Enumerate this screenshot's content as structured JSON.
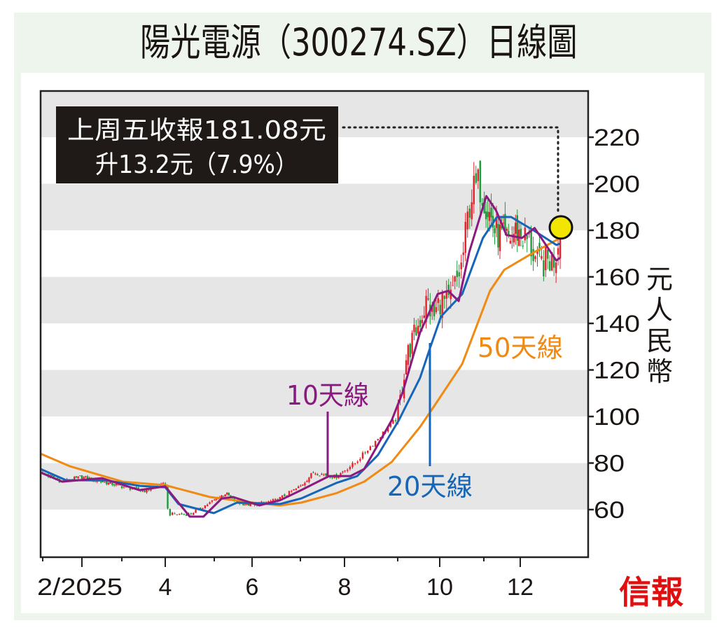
{
  "title": "陽光電源（300274.SZ）日線圖",
  "callout": {
    "line1": "上周五收報181.08元",
    "line2": "升13.2元（7.9%）",
    "last_close": 181.08
  },
  "labels": {
    "ma10": "10天線",
    "ma20": "20天線",
    "ma50": "50天線",
    "ylabel": "元人民幣"
  },
  "logo": "信報",
  "colors": {
    "ma10": "#8b1a80",
    "ma20": "#1565b8",
    "ma50": "#f08a12",
    "up": "#e8202a",
    "down": "#1e9a3a",
    "band": "#e6e6e6",
    "highlight": "#f2e600",
    "logo": "#e01010",
    "background": "#eef5ec"
  },
  "chart_data": {
    "type": "candlestick-with-moving-averages",
    "title": "陽光電源（300274.SZ）日線圖",
    "xlabel": "",
    "ylabel": "元人民幣",
    "ylim": [
      40,
      240
    ],
    "yticks": [
      60,
      80,
      100,
      120,
      140,
      160,
      180,
      200,
      220
    ],
    "xticks": [
      {
        "month": 2,
        "label": "2/2025"
      },
      {
        "month": 4,
        "label": "4"
      },
      {
        "month": 6,
        "label": "6"
      },
      {
        "month": 8,
        "label": "8"
      },
      {
        "month": 10,
        "label": "10"
      },
      {
        "month": 12,
        "label": "12"
      }
    ],
    "x_units": "month of 2025 (1.0 = start of January)",
    "close_anchors": [
      [
        0.95,
        76
      ],
      [
        1.5,
        72
      ],
      [
        2.0,
        74
      ],
      [
        2.5,
        72
      ],
      [
        3.0,
        70
      ],
      [
        3.5,
        68
      ],
      [
        4.0,
        71
      ],
      [
        4.06,
        58
      ],
      [
        4.5,
        58
      ],
      [
        5.0,
        64
      ],
      [
        5.3,
        67
      ],
      [
        5.6,
        63
      ],
      [
        6.0,
        62
      ],
      [
        6.5,
        64
      ],
      [
        7.0,
        70
      ],
      [
        7.3,
        76
      ],
      [
        7.8,
        74
      ],
      [
        8.2,
        80
      ],
      [
        8.6,
        90
      ],
      [
        8.9,
        97
      ],
      [
        9.0,
        100
      ],
      [
        9.2,
        125
      ],
      [
        9.5,
        140
      ],
      [
        9.7,
        150
      ],
      [
        9.85,
        142
      ],
      [
        10.0,
        150
      ],
      [
        10.2,
        148
      ],
      [
        10.5,
        165
      ],
      [
        10.7,
        195
      ],
      [
        10.9,
        200
      ],
      [
        11.1,
        190
      ],
      [
        11.3,
        180
      ],
      [
        11.6,
        175
      ],
      [
        11.9,
        180
      ],
      [
        12.2,
        175
      ],
      [
        12.4,
        165
      ],
      [
        12.8,
        168
      ],
      [
        12.92,
        181.08
      ]
    ],
    "series": [
      {
        "name": "10天線",
        "points": [
          [
            0.95,
            75.9
          ],
          [
            1.5,
            72
          ],
          [
            2.5,
            73.5
          ],
          [
            3.4,
            68.4
          ],
          [
            4.0,
            70
          ],
          [
            4.5,
            57
          ],
          [
            4.78,
            57
          ],
          [
            5.2,
            64.8
          ],
          [
            5.5,
            65.4
          ],
          [
            6.15,
            61.8
          ],
          [
            6.58,
            64
          ],
          [
            7.02,
            68.4
          ],
          [
            7.65,
            74.4
          ],
          [
            8.11,
            74.4
          ],
          [
            8.37,
            77.4
          ],
          [
            8.89,
            98.5
          ],
          [
            9.12,
            110.5
          ],
          [
            9.53,
            136
          ],
          [
            9.95,
            152.6
          ],
          [
            10.19,
            154
          ],
          [
            10.43,
            149.6
          ],
          [
            10.67,
            170.7
          ],
          [
            11.07,
            194.7
          ],
          [
            11.33,
            188.7
          ],
          [
            11.62,
            178
          ],
          [
            12.04,
            176.7
          ],
          [
            12.33,
            181
          ],
          [
            12.83,
            167
          ],
          [
            12.92,
            168.2
          ]
        ]
      },
      {
        "name": "20天線",
        "points": [
          [
            0.95,
            77.4
          ],
          [
            1.6,
            72.6
          ],
          [
            2.58,
            72.6
          ],
          [
            3.42,
            70.2
          ],
          [
            4.0,
            69.6
          ],
          [
            4.27,
            62.4
          ],
          [
            4.99,
            58.5
          ],
          [
            5.6,
            63
          ],
          [
            6.58,
            62.4
          ],
          [
            7.02,
            64.8
          ],
          [
            7.81,
            71.4
          ],
          [
            8.24,
            74.4
          ],
          [
            8.63,
            83.5
          ],
          [
            9.03,
            98.5
          ],
          [
            9.53,
            116.5
          ],
          [
            9.78,
            130
          ],
          [
            10.03,
            143
          ],
          [
            10.51,
            152.6
          ],
          [
            10.98,
            176.7
          ],
          [
            11.36,
            185.7
          ],
          [
            11.75,
            185.7
          ],
          [
            12.33,
            179.7
          ],
          [
            12.83,
            173.7
          ],
          [
            12.92,
            174.3
          ]
        ]
      },
      {
        "name": "50天線",
        "points": [
          [
            0.95,
            84
          ],
          [
            1.7,
            78.6
          ],
          [
            3.02,
            72
          ],
          [
            4.0,
            70.5
          ],
          [
            4.91,
            65.4
          ],
          [
            6.0,
            63
          ],
          [
            6.58,
            61.8
          ],
          [
            7.02,
            63
          ],
          [
            7.81,
            67
          ],
          [
            8.37,
            72
          ],
          [
            8.89,
            80.5
          ],
          [
            9.53,
            95.5
          ],
          [
            9.87,
            104.5
          ],
          [
            10.51,
            122.6
          ],
          [
            11.17,
            154
          ],
          [
            11.56,
            163
          ],
          [
            12.33,
            170.7
          ],
          [
            12.92,
            176.7
          ]
        ]
      }
    ],
    "bands": [
      [
        60,
        80
      ],
      [
        100,
        120
      ],
      [
        140,
        160
      ],
      [
        180,
        200
      ],
      [
        220,
        240
      ]
    ],
    "grid": false,
    "legend": "inline-annotations"
  }
}
